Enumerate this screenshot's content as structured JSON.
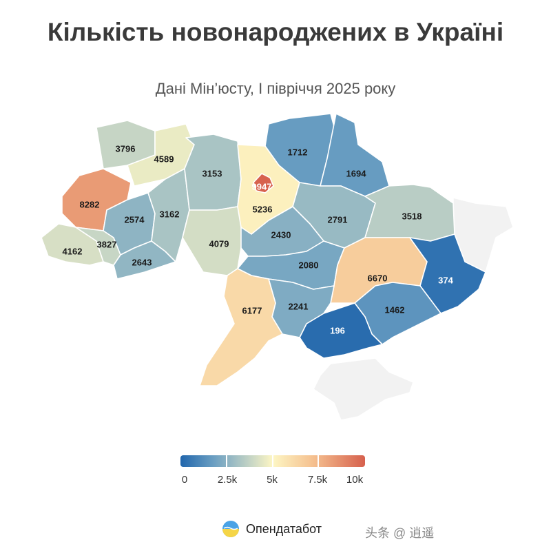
{
  "title": "Кількість новонароджених в Україні",
  "subtitle": "Дані Мін’юсту, І півріччя 2025 року",
  "map": {
    "metric": "newborns",
    "regions": [
      {
        "id": "volyn",
        "value": 3796
      },
      {
        "id": "rivne",
        "value": 4589
      },
      {
        "id": "zhytomyr",
        "value": 3153
      },
      {
        "id": "kyiv-city",
        "value": 9947
      },
      {
        "id": "kyiv-oblast",
        "value": 5236
      },
      {
        "id": "chernihiv",
        "value": 1712
      },
      {
        "id": "sumy",
        "value": 1694
      },
      {
        "id": "lviv",
        "value": 8282
      },
      {
        "id": "ternopil",
        "value": 2574
      },
      {
        "id": "khmelnytskyi",
        "value": 3162
      },
      {
        "id": "vinnytsia",
        "value": 4079
      },
      {
        "id": "zakarpattia",
        "value": 4162
      },
      {
        "id": "ivano-frankivsk",
        "value": 3827
      },
      {
        "id": "chernivtsi",
        "value": 2643
      },
      {
        "id": "cherkasy",
        "value": 2430
      },
      {
        "id": "poltava",
        "value": 2791
      },
      {
        "id": "kharkiv",
        "value": 3518
      },
      {
        "id": "kirovohrad",
        "value": 2080
      },
      {
        "id": "dnipropetrovsk",
        "value": 6670
      },
      {
        "id": "donetsk",
        "value": 374
      },
      {
        "id": "odesa",
        "value": 6177
      },
      {
        "id": "mykolaiv",
        "value": 2241
      },
      {
        "id": "zaporizhzhia",
        "value": 1462
      },
      {
        "id": "kherson",
        "value": 196
      }
    ],
    "colors": {
      "occupied": "#f2f2f2",
      "scale": [
        "#2166ac",
        "#6b9fc2",
        "#c6d5c5",
        "#fdf6c4",
        "#f5c08f",
        "#d6604d"
      ]
    }
  },
  "legend": {
    "labels": [
      "0",
      "2.5k",
      "5k",
      "7.5k",
      "10k"
    ],
    "min": 0,
    "max": 10000
  },
  "brand": {
    "name": "Опендатабот",
    "logo_icon": "opendatabot-logo-icon"
  },
  "watermark": "头条 @ 逍遥"
}
